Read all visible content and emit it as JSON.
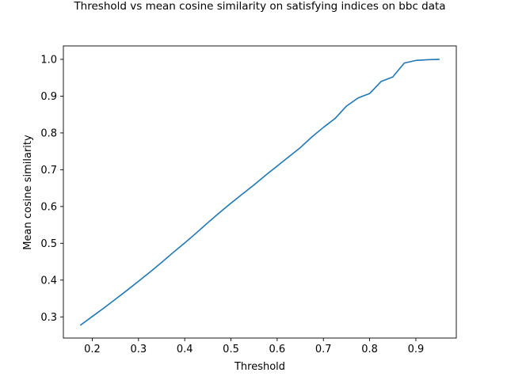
{
  "chart_data": {
    "type": "line",
    "title": "Threshold vs mean cosine similarity on satisfying indices on bbc data",
    "xlabel": "Threshold",
    "ylabel": "Mean cosine similarity",
    "xlim": [
      0.1375,
      0.9875
    ],
    "ylim": [
      0.2425,
      1.0365
    ],
    "xticks": [
      0.2,
      0.3,
      0.4,
      0.5,
      0.6,
      0.7,
      0.8,
      0.9
    ],
    "xtick_labels": [
      "0.2",
      "0.3",
      "0.4",
      "0.5",
      "0.6",
      "0.7",
      "0.8",
      "0.9"
    ],
    "yticks": [
      0.3,
      0.4,
      0.5,
      0.6,
      0.7,
      0.8,
      0.9,
      1.0
    ],
    "ytick_labels": [
      "0.3",
      "0.4",
      "0.5",
      "0.6",
      "0.7",
      "0.8",
      "0.9",
      "1.0"
    ],
    "grid": false,
    "series": [
      {
        "color": "#1f77b4",
        "x": [
          0.175,
          0.2,
          0.225,
          0.25,
          0.275,
          0.3,
          0.325,
          0.35,
          0.375,
          0.4,
          0.425,
          0.45,
          0.475,
          0.5,
          0.525,
          0.55,
          0.575,
          0.6,
          0.625,
          0.65,
          0.675,
          0.7,
          0.725,
          0.75,
          0.775,
          0.8,
          0.825,
          0.85,
          0.875,
          0.9,
          0.925,
          0.95
        ],
        "y": [
          0.278,
          0.301,
          0.324,
          0.348,
          0.372,
          0.397,
          0.422,
          0.448,
          0.475,
          0.501,
          0.528,
          0.556,
          0.583,
          0.609,
          0.634,
          0.659,
          0.685,
          0.71,
          0.735,
          0.76,
          0.789,
          0.815,
          0.839,
          0.873,
          0.895,
          0.907,
          0.94,
          0.952,
          0.99,
          0.997,
          0.999,
          1.0
        ]
      }
    ]
  }
}
